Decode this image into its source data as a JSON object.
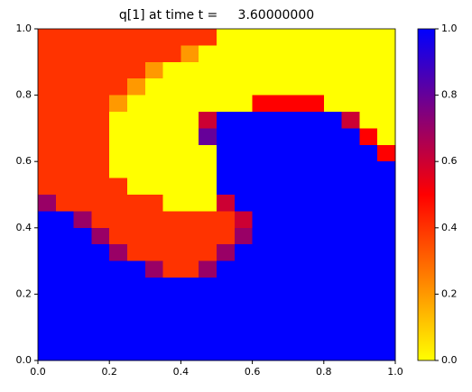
{
  "chart_data": {
    "type": "heatmap",
    "title": "q[1] at time t =     3.60000000",
    "xlim": [
      0,
      1
    ],
    "ylim": [
      0,
      1
    ],
    "xticks": [
      {
        "value": 0,
        "label": "0.0"
      },
      0.2,
      0.4,
      0.6,
      0.8,
      {
        "value": 1,
        "label": "1.0"
      }
    ],
    "yticks": [
      {
        "value": 0,
        "label": "0.0"
      },
      0.2,
      0.4,
      0.6,
      0.8,
      {
        "value": 1,
        "label": "1.0"
      }
    ],
    "colormap": [
      [
        0,
        "#ffff00"
      ],
      [
        0.5,
        "#ff0000"
      ],
      [
        1,
        "#0000ff"
      ]
    ],
    "clim": [
      0,
      1
    ],
    "cticks": [
      {
        "value": 0,
        "label": "0.0"
      },
      0.2,
      0.4,
      0.6,
      0.8,
      {
        "value": 1,
        "label": "1.0"
      }
    ],
    "z": [
      [
        0.4,
        0.4,
        0.4,
        0.4,
        0.4,
        0.4,
        0.4,
        0.4,
        0.4,
        0.4,
        0,
        0,
        0,
        0,
        0,
        0,
        0,
        0,
        0,
        0
      ],
      [
        0.4,
        0.4,
        0.4,
        0.4,
        0.4,
        0.4,
        0.4,
        0.4,
        0.2,
        0,
        0,
        0,
        0,
        0,
        0,
        0,
        0,
        0,
        0,
        0
      ],
      [
        0.4,
        0.4,
        0.4,
        0.4,
        0.4,
        0.4,
        0.2,
        0,
        0,
        0,
        0,
        0,
        0,
        0,
        0,
        0,
        0,
        0,
        0,
        0
      ],
      [
        0.4,
        0.4,
        0.4,
        0.4,
        0.4,
        0.2,
        0,
        0,
        0,
        0,
        0,
        0,
        0,
        0,
        0,
        0,
        0,
        0,
        0,
        0
      ],
      [
        0.4,
        0.4,
        0.4,
        0.4,
        0.2,
        0,
        0,
        0,
        0,
        0,
        0,
        0,
        0.5,
        0.5,
        0.5,
        0.5,
        0,
        0,
        0,
        0
      ],
      [
        0.4,
        0.4,
        0.4,
        0.4,
        0,
        0,
        0,
        0,
        0,
        0.6,
        1,
        1,
        1,
        1,
        1,
        1,
        1,
        0.6,
        0,
        0
      ],
      [
        0.4,
        0.4,
        0.4,
        0.4,
        0,
        0,
        0,
        0,
        0,
        0.8,
        1,
        1,
        1,
        1,
        1,
        1,
        1,
        1,
        0.5,
        0
      ],
      [
        0.4,
        0.4,
        0.4,
        0.4,
        0,
        0,
        0,
        0,
        0,
        0,
        1,
        1,
        1,
        1,
        1,
        1,
        1,
        1,
        1,
        0.5
      ],
      [
        0.4,
        0.4,
        0.4,
        0.4,
        0,
        0,
        0,
        0,
        0,
        0,
        1,
        1,
        1,
        1,
        1,
        1,
        1,
        1,
        1,
        1
      ],
      [
        0.4,
        0.4,
        0.4,
        0.4,
        0.4,
        0,
        0,
        0,
        0,
        0,
        1,
        1,
        1,
        1,
        1,
        1,
        1,
        1,
        1,
        1
      ],
      [
        0.7,
        0.4,
        0.4,
        0.4,
        0.4,
        0.4,
        0.4,
        0,
        0,
        0,
        0.6,
        1,
        1,
        1,
        1,
        1,
        1,
        1,
        1,
        1
      ],
      [
        1,
        1,
        0.7,
        0.4,
        0.4,
        0.4,
        0.4,
        0.4,
        0.4,
        0.4,
        0.4,
        0.6,
        1,
        1,
        1,
        1,
        1,
        1,
        1,
        1
      ],
      [
        1,
        1,
        1,
        0.7,
        0.4,
        0.4,
        0.4,
        0.4,
        0.4,
        0.4,
        0.4,
        0.7,
        1,
        1,
        1,
        1,
        1,
        1,
        1,
        1
      ],
      [
        1,
        1,
        1,
        1,
        0.7,
        0.4,
        0.4,
        0.4,
        0.4,
        0.4,
        0.7,
        1,
        1,
        1,
        1,
        1,
        1,
        1,
        1,
        1
      ],
      [
        1,
        1,
        1,
        1,
        1,
        1,
        0.7,
        0.4,
        0.4,
        0.7,
        1,
        1,
        1,
        1,
        1,
        1,
        1,
        1,
        1,
        1
      ],
      [
        1,
        1,
        1,
        1,
        1,
        1,
        1,
        1,
        1,
        1,
        1,
        1,
        1,
        1,
        1,
        1,
        1,
        1,
        1,
        1
      ],
      [
        1,
        1,
        1,
        1,
        1,
        1,
        1,
        1,
        1,
        1,
        1,
        1,
        1,
        1,
        1,
        1,
        1,
        1,
        1,
        1
      ],
      [
        1,
        1,
        1,
        1,
        1,
        1,
        1,
        1,
        1,
        1,
        1,
        1,
        1,
        1,
        1,
        1,
        1,
        1,
        1,
        1
      ],
      [
        1,
        1,
        1,
        1,
        1,
        1,
        1,
        1,
        1,
        1,
        1,
        1,
        1,
        1,
        1,
        1,
        1,
        1,
        1,
        1
      ],
      [
        1,
        1,
        1,
        1,
        1,
        1,
        1,
        1,
        1,
        1,
        1,
        1,
        1,
        1,
        1,
        1,
        1,
        1,
        1,
        1
      ]
    ]
  }
}
